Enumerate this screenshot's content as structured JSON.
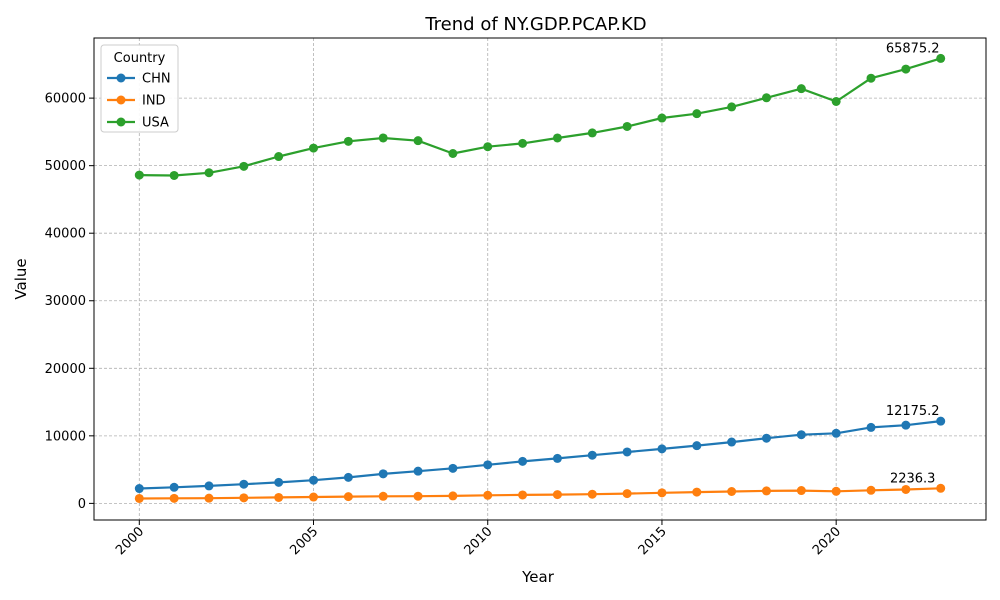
{
  "chart_data": {
    "type": "line",
    "title": "Trend of NY.GDP.PCAP.KD",
    "xlabel": "Year",
    "ylabel": "Value",
    "xlim": [
      1998.7,
      2024.3
    ],
    "ylim": [
      -2460,
      68900
    ],
    "x_ticks": [
      2000,
      2005,
      2010,
      2015,
      2020
    ],
    "y_ticks": [
      0,
      10000,
      20000,
      30000,
      40000,
      50000,
      60000
    ],
    "grid": true,
    "legend": {
      "title": "Country",
      "placement": "top-left"
    },
    "x": [
      2000,
      2001,
      2002,
      2003,
      2004,
      2005,
      2006,
      2007,
      2008,
      2009,
      2010,
      2011,
      2012,
      2013,
      2014,
      2015,
      2016,
      2017,
      2018,
      2019,
      2020,
      2021,
      2022,
      2023
    ],
    "series": [
      {
        "name": "CHN",
        "color": "#1f77b4",
        "values": [
          2200,
          2380,
          2590,
          2840,
          3110,
          3430,
          3850,
          4370,
          4770,
          5190,
          5710,
          6220,
          6660,
          7130,
          7610,
          8070,
          8550,
          9080,
          9650,
          10170,
          10380,
          11250,
          11580,
          12175.2
        ]
      },
      {
        "name": "IND",
        "color": "#ff7f0e",
        "values": [
          730,
          750,
          770,
          820,
          880,
          940,
          1000,
          1050,
          1060,
          1110,
          1200,
          1250,
          1300,
          1360,
          1450,
          1560,
          1670,
          1760,
          1850,
          1900,
          1790,
          1940,
          2060,
          2236.3
        ]
      },
      {
        "name": "USA",
        "color": "#2ca02c",
        "values": [
          48600,
          48550,
          48950,
          49900,
          51350,
          52600,
          53600,
          54100,
          53700,
          51800,
          52800,
          53300,
          54100,
          54850,
          55800,
          57050,
          57700,
          58700,
          60050,
          61400,
          59500,
          62950,
          64300,
          65875.2
        ]
      }
    ],
    "annotations": [
      {
        "series": "USA",
        "x": 2023,
        "y": 65875.2,
        "text": "65875.2"
      },
      {
        "series": "CHN",
        "x": 2023,
        "y": 12175.2,
        "text": "12175.2"
      },
      {
        "series": "IND",
        "x": 2023,
        "y": 2236.3,
        "text": "2236.3"
      }
    ]
  }
}
